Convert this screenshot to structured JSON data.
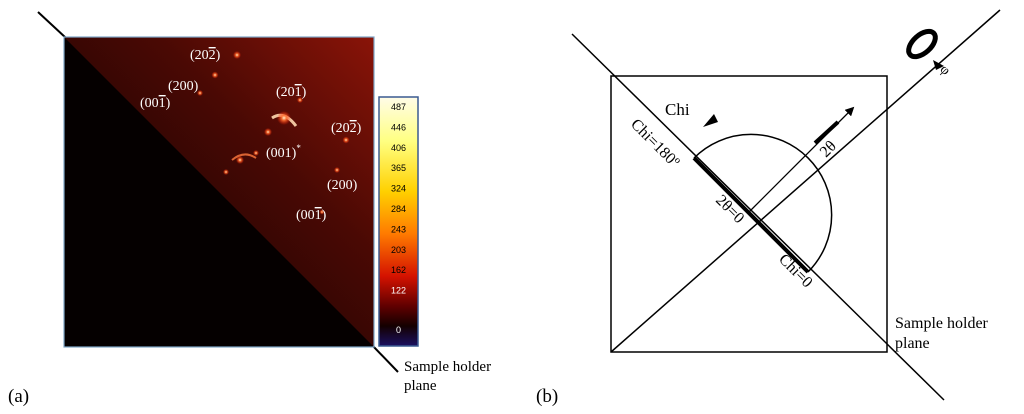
{
  "panel_a": {
    "label": "(a)",
    "reflections": [
      {
        "text": "(20",
        "bar": "2",
        "tail": ")"
      },
      {
        "text": "(200)",
        "bar": "",
        "tail": ""
      },
      {
        "text": "(00",
        "bar": "1",
        "tail": ")"
      },
      {
        "text": "(20",
        "bar": "1",
        "tail": ")"
      },
      {
        "text": "(20",
        "bar": "2",
        "tail": ")"
      },
      {
        "text": "(001)",
        "bar": "",
        "tail": "*"
      },
      {
        "text": "(200)",
        "bar": "",
        "tail": ""
      },
      {
        "text": "(00",
        "bar": "1",
        "tail": ")"
      }
    ],
    "colorbar": {
      "ticks": [
        "487",
        "446",
        "406",
        "365",
        "324",
        "284",
        "243",
        "203",
        "162",
        "122",
        "0"
      ]
    },
    "sample_holder_label": [
      "Sample holder",
      "plane"
    ],
    "colors": {
      "detector_bg": "#1a0503",
      "shadow": "#050000",
      "spot": "#ff4a1a"
    }
  },
  "panel_b": {
    "label": "(b)",
    "chi_label": "Chi",
    "chi_180_label": "Chi=180º",
    "chi_0_label": "Chi=0",
    "two_theta_label": "2θ",
    "two_theta_zero_label": "2θ=0",
    "phi_label": "φ",
    "sample_holder_label": [
      "Sample holder",
      "plane"
    ]
  }
}
